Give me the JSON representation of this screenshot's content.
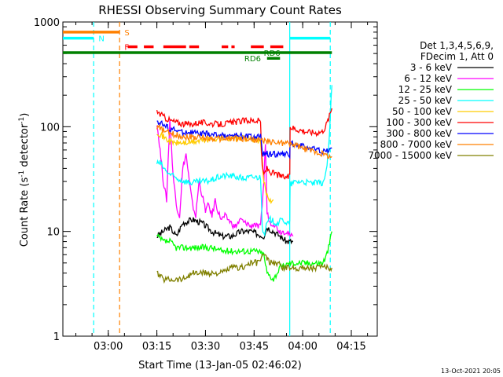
{
  "chart_data": {
    "type": "line",
    "title": "RHESSI Observing Summary Count Rates",
    "xlabel": "Start Time (13-Jan-05 02:46:02)",
    "ylabel_main": "Count Rate (s",
    "ylabel_sup1": "-1",
    "ylabel_mid": " detector",
    "ylabel_sup2": "-1",
    "ylabel_end": ")",
    "yscale": "log",
    "ylim": [
      1,
      1000
    ],
    "xlim": [
      "02:46:02",
      "04:23:00"
    ],
    "x_ticks": [
      {
        "t": 14,
        "label": "03:00"
      },
      {
        "t": 29,
        "label": "03:15"
      },
      {
        "t": 44,
        "label": "03:30"
      },
      {
        "t": 59,
        "label": "03:45"
      },
      {
        "t": 74,
        "label": "04:00"
      },
      {
        "t": 89,
        "label": "04:15"
      }
    ],
    "y_ticks": [
      {
        "v": 1,
        "label": "1"
      },
      {
        "v": 10,
        "label": "10"
      },
      {
        "v": 100,
        "label": "100"
      },
      {
        "v": 1000,
        "label": "1000"
      }
    ],
    "legend_header": [
      "Det 1,3,4,5,6,9,",
      "FDecim 1, Att 0"
    ],
    "legend_position": "right",
    "series": [
      {
        "name": "3 - 6 keV",
        "color": "#000000",
        "points": [
          [
            29,
            9
          ],
          [
            31,
            10
          ],
          [
            33,
            11
          ],
          [
            35,
            9
          ],
          [
            37,
            12
          ],
          [
            40,
            13
          ],
          [
            43,
            12
          ],
          [
            46,
            10
          ],
          [
            49,
            9
          ],
          [
            52,
            9
          ],
          [
            55,
            10
          ],
          [
            58,
            10
          ],
          [
            62,
            9
          ],
          [
            63,
            11
          ],
          [
            65,
            10
          ],
          [
            67,
            9
          ],
          [
            69,
            8
          ],
          [
            71,
            8
          ]
        ]
      },
      {
        "name": "6 - 12 keV",
        "color": "#ff00ff",
        "points": [
          [
            29,
            110
          ],
          [
            30,
            60
          ],
          [
            31,
            30
          ],
          [
            32,
            20
          ],
          [
            33,
            120
          ],
          [
            34,
            35
          ],
          [
            35,
            18
          ],
          [
            36,
            14
          ],
          [
            37,
            40
          ],
          [
            38,
            55
          ],
          [
            39,
            30
          ],
          [
            40,
            18
          ],
          [
            41,
            14
          ],
          [
            42,
            30
          ],
          [
            43,
            22
          ],
          [
            44,
            16
          ],
          [
            45,
            18
          ],
          [
            46,
            14
          ],
          [
            47,
            20
          ],
          [
            48,
            15
          ],
          [
            49,
            13
          ],
          [
            50,
            14
          ],
          [
            51,
            13
          ],
          [
            52,
            12
          ],
          [
            53,
            11
          ],
          [
            54,
            12
          ],
          [
            55,
            13
          ],
          [
            56,
            12
          ],
          [
            57,
            12
          ],
          [
            58,
            11
          ],
          [
            59,
            12
          ],
          [
            60,
            11
          ],
          [
            61,
            11
          ],
          [
            62,
            30
          ],
          [
            62.5,
            70
          ],
          [
            63,
            15
          ],
          [
            64,
            12
          ],
          [
            65,
            12
          ],
          [
            66,
            11
          ],
          [
            67,
            10
          ],
          [
            68,
            10
          ],
          [
            69,
            10
          ],
          [
            70,
            9
          ],
          [
            71,
            9
          ]
        ]
      },
      {
        "name": "12 - 25 keV",
        "color": "#00ff00",
        "points": [
          [
            29,
            9
          ],
          [
            31,
            8
          ],
          [
            33,
            8
          ],
          [
            35,
            7
          ],
          [
            37,
            7
          ],
          [
            40,
            7
          ],
          [
            43,
            7
          ],
          [
            46,
            7
          ],
          [
            49,
            6.5
          ],
          [
            52,
            6.5
          ],
          [
            55,
            6.5
          ],
          [
            58,
            6.5
          ],
          [
            60,
            6.5
          ],
          [
            62,
            6
          ],
          [
            63,
            4
          ],
          [
            65,
            3.5
          ],
          [
            67,
            4.5
          ],
          [
            70,
            5
          ],
          [
            72,
            5
          ],
          [
            74,
            5
          ],
          [
            76,
            5
          ],
          [
            78,
            5
          ],
          [
            80,
            5
          ],
          [
            81,
            5.5
          ],
          [
            82,
            7
          ],
          [
            83,
            10
          ]
        ]
      },
      {
        "name": "25 - 50 keV",
        "color": "#00ffff",
        "points": [
          [
            29,
            45
          ],
          [
            30,
            45
          ],
          [
            32,
            37
          ],
          [
            35,
            32
          ],
          [
            38,
            30
          ],
          [
            40,
            29
          ],
          [
            42,
            30
          ],
          [
            44,
            30
          ],
          [
            46,
            31
          ],
          [
            48,
            33
          ],
          [
            50,
            34
          ],
          [
            52,
            34
          ],
          [
            54,
            33
          ],
          [
            56,
            32
          ],
          [
            58,
            33
          ],
          [
            60,
            33
          ],
          [
            61,
            33
          ],
          [
            61.5,
            12
          ],
          [
            62,
            9
          ],
          [
            63,
            12
          ],
          [
            64,
            13
          ],
          [
            66,
            12
          ],
          [
            68,
            13
          ],
          [
            69,
            12
          ],
          [
            70,
            12
          ],
          [
            70.1,
            28
          ],
          [
            72,
            30
          ],
          [
            74,
            30
          ],
          [
            76,
            29
          ],
          [
            78,
            29
          ],
          [
            80,
            29
          ],
          [
            81,
            33
          ],
          [
            82,
            60
          ],
          [
            83,
            250
          ]
        ]
      },
      {
        "name": "50 - 100 keV",
        "color": "#ffcc00",
        "points": [
          [
            29,
            90
          ],
          [
            31,
            80
          ],
          [
            33,
            72
          ],
          [
            35,
            70
          ],
          [
            38,
            70
          ],
          [
            41,
            72
          ],
          [
            44,
            75
          ],
          [
            47,
            77
          ],
          [
            50,
            78
          ],
          [
            53,
            78
          ],
          [
            56,
            78
          ],
          [
            58,
            76
          ],
          [
            60,
            75
          ],
          [
            61,
            70
          ],
          [
            62,
            30
          ],
          [
            63,
            22
          ],
          [
            64,
            20
          ],
          [
            65,
            20
          ]
        ]
      },
      {
        "name": "100 - 300 keV",
        "color": "#ff0000",
        "points": [
          [
            29,
            140
          ],
          [
            31,
            125
          ],
          [
            33,
            115
          ],
          [
            36,
            108
          ],
          [
            39,
            105
          ],
          [
            42,
            110
          ],
          [
            45,
            108
          ],
          [
            48,
            105
          ],
          [
            51,
            108
          ],
          [
            54,
            112
          ],
          [
            57,
            115
          ],
          [
            60,
            114
          ],
          [
            61,
            113
          ],
          [
            61.5,
            40
          ],
          [
            62,
            35
          ],
          [
            63,
            40
          ],
          [
            64,
            37
          ],
          [
            66,
            35
          ],
          [
            68,
            33
          ],
          [
            69,
            33
          ],
          [
            70,
            33
          ],
          [
            70.1,
            100
          ],
          [
            72,
            95
          ],
          [
            74,
            92
          ],
          [
            76,
            89
          ],
          [
            78,
            88
          ],
          [
            80,
            90
          ],
          [
            81,
            100
          ],
          [
            82,
            120
          ],
          [
            83,
            150
          ]
        ]
      },
      {
        "name": "300 - 800 keV",
        "color": "#0000ff",
        "points": [
          [
            29,
            115
          ],
          [
            31,
            104
          ],
          [
            33,
            96
          ],
          [
            36,
            90
          ],
          [
            39,
            88
          ],
          [
            42,
            86
          ],
          [
            45,
            85
          ],
          [
            48,
            83
          ],
          [
            51,
            82
          ],
          [
            54,
            82
          ],
          [
            57,
            81
          ],
          [
            60,
            80
          ],
          [
            61,
            80
          ],
          [
            61.5,
            55
          ],
          [
            63,
            55
          ],
          [
            65,
            55
          ],
          [
            68,
            54
          ],
          [
            69,
            54
          ],
          [
            70,
            54
          ],
          [
            70.1,
            70
          ],
          [
            72,
            68
          ],
          [
            74,
            65
          ],
          [
            76,
            63
          ],
          [
            78,
            61
          ],
          [
            80,
            58
          ],
          [
            81,
            58
          ],
          [
            82,
            60
          ],
          [
            83,
            62
          ]
        ]
      },
      {
        "name": "800 - 7000 keV",
        "color": "#ff8000",
        "points": [
          [
            29,
            100
          ],
          [
            31,
            92
          ],
          [
            33,
            86
          ],
          [
            36,
            82
          ],
          [
            39,
            80
          ],
          [
            42,
            79
          ],
          [
            45,
            78
          ],
          [
            48,
            77
          ],
          [
            51,
            77
          ],
          [
            54,
            77
          ],
          [
            57,
            76
          ],
          [
            60,
            75
          ],
          [
            61,
            74
          ],
          [
            63,
            72
          ],
          [
            65,
            71
          ],
          [
            68,
            70
          ],
          [
            70,
            69
          ],
          [
            72,
            66
          ],
          [
            74,
            62
          ],
          [
            76,
            60
          ],
          [
            78,
            58
          ],
          [
            80,
            55
          ],
          [
            82,
            53
          ],
          [
            83,
            52
          ]
        ]
      },
      {
        "name": "7000 - 15000 keV",
        "color": "#808000",
        "points": [
          [
            29,
            4
          ],
          [
            31,
            3.5
          ],
          [
            33,
            3.5
          ],
          [
            35,
            3.5
          ],
          [
            37,
            3.5
          ],
          [
            40,
            4
          ],
          [
            43,
            4
          ],
          [
            46,
            4
          ],
          [
            49,
            4
          ],
          [
            52,
            4.5
          ],
          [
            55,
            4.5
          ],
          [
            58,
            5
          ],
          [
            60,
            5
          ],
          [
            62,
            6
          ],
          [
            64,
            5
          ],
          [
            66,
            5
          ],
          [
            68,
            4.5
          ],
          [
            70,
            4.5
          ],
          [
            72,
            4.5
          ],
          [
            74,
            4.5
          ],
          [
            76,
            4.5
          ],
          [
            78,
            4.5
          ],
          [
            80,
            4.5
          ],
          [
            82,
            4.5
          ],
          [
            83,
            4.5
          ]
        ]
      }
    ],
    "vertical_lines": [
      {
        "t": 9.5,
        "color": "#00ffff",
        "dash": true
      },
      {
        "t": 17.5,
        "color": "#ff8000",
        "dash": true
      },
      {
        "t": 70,
        "color": "#00ffff",
        "dash": false
      },
      {
        "t": 82.5,
        "color": "#00ffff",
        "dash": true
      }
    ],
    "flags": [
      {
        "label": "S",
        "color": "#ff8000",
        "y": 800,
        "segments": [
          [
            0,
            17.5
          ]
        ],
        "label_t": 19,
        "dash": false
      },
      {
        "label": "N",
        "color": "#00ffff",
        "y": 700,
        "segments": [
          [
            0,
            9.5
          ],
          [
            70,
            82.5
          ]
        ],
        "label_t": 11,
        "dash": false
      },
      {
        "label": "F",
        "color": "#ff0000",
        "y": 580,
        "segments": [
          [
            20,
            23
          ],
          [
            25,
            28
          ],
          [
            31,
            38
          ],
          [
            39,
            42
          ],
          [
            49,
            51
          ],
          [
            52,
            53
          ],
          [
            58,
            62
          ],
          [
            64,
            68
          ]
        ],
        "label_t": 19,
        "dash": true
      },
      {
        "label": "RD6",
        "color": "#008000",
        "y": 510,
        "segments": [
          [
            0,
            83
          ]
        ],
        "label_t": 62,
        "dash": false
      },
      {
        "label": "RD6",
        "color": "#008000",
        "y": 450,
        "segments": [
          [
            63,
            67
          ]
        ],
        "label_t": 56,
        "dash": false
      }
    ],
    "footer_date": "13-Oct-2021 20:05"
  }
}
